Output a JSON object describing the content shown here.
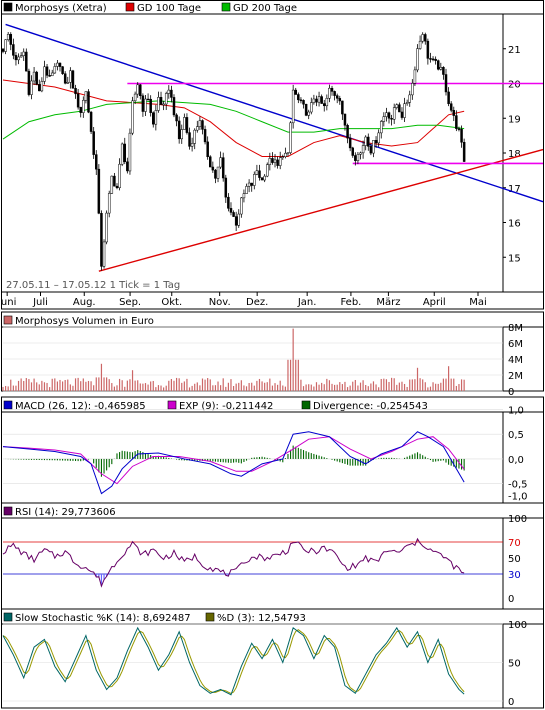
{
  "chart_data": [
    {
      "type": "candlestick",
      "panel": "price",
      "legend": [
        {
          "label": "Morphosys (Xetra)",
          "color": "#000000"
        },
        {
          "label": "GD 100 Tage",
          "color": "#dd0000"
        },
        {
          "label": "GD 200 Tage",
          "color": "#00bb00"
        }
      ],
      "date_range_label": "27.05.11 – 17.05.12   1 Tick = 1 Tag",
      "x_months": [
        "Juni",
        "Juli",
        "Aug.",
        "Sep.",
        "Okt.",
        "Nov.",
        "Dez.",
        "Jan.",
        "Feb.",
        "März",
        "April",
        "Mai"
      ],
      "ylim": [
        14.0,
        22.0
      ],
      "yticks": [
        15,
        16,
        17,
        18,
        19,
        20,
        21
      ],
      "close_path": [
        [
          0,
          21.0
        ],
        [
          2,
          21.4
        ],
        [
          5,
          20.6
        ],
        [
          8,
          20.9
        ],
        [
          10,
          19.8
        ],
        [
          12,
          20.3
        ],
        [
          14,
          19.7
        ],
        [
          16,
          20.5
        ],
        [
          18,
          20.1
        ],
        [
          20,
          20.4
        ],
        [
          22,
          20.6
        ],
        [
          24,
          19.9
        ],
        [
          26,
          20.3
        ],
        [
          28,
          19.6
        ],
        [
          30,
          19.2
        ],
        [
          32,
          19.8
        ],
        [
          34,
          18.6
        ],
        [
          36,
          17.5
        ],
        [
          38,
          14.8
        ],
        [
          40,
          16.2
        ],
        [
          42,
          17.3
        ],
        [
          44,
          17.0
        ],
        [
          46,
          18.2
        ],
        [
          48,
          17.5
        ],
        [
          50,
          19.4
        ],
        [
          52,
          20.0
        ],
        [
          54,
          19.3
        ],
        [
          56,
          19.6
        ],
        [
          58,
          18.8
        ],
        [
          60,
          19.6
        ],
        [
          62,
          19.3
        ],
        [
          64,
          19.9
        ],
        [
          66,
          19.2
        ],
        [
          68,
          18.4
        ],
        [
          70,
          19.0
        ],
        [
          72,
          18.2
        ],
        [
          74,
          18.6
        ],
        [
          76,
          19.0
        ],
        [
          78,
          18.2
        ],
        [
          80,
          17.7
        ],
        [
          82,
          17.3
        ],
        [
          84,
          17.8
        ],
        [
          86,
          16.7
        ],
        [
          88,
          16.3
        ],
        [
          90,
          16.0
        ],
        [
          92,
          16.6
        ],
        [
          94,
          17.0
        ],
        [
          96,
          17.1
        ],
        [
          98,
          17.5
        ],
        [
          100,
          17.2
        ],
        [
          102,
          17.7
        ],
        [
          104,
          17.8
        ],
        [
          106,
          17.6
        ],
        [
          108,
          18.0
        ],
        [
          110,
          17.9
        ],
        [
          112,
          19.8
        ],
        [
          114,
          19.5
        ],
        [
          116,
          19.3
        ],
        [
          118,
          19.1
        ],
        [
          120,
          19.6
        ],
        [
          122,
          19.5
        ],
        [
          124,
          19.3
        ],
        [
          126,
          19.8
        ],
        [
          128,
          19.7
        ],
        [
          130,
          19.6
        ],
        [
          132,
          18.7
        ],
        [
          134,
          18.2
        ],
        [
          136,
          17.9
        ],
        [
          138,
          18.0
        ],
        [
          140,
          18.5
        ],
        [
          142,
          18.1
        ],
        [
          144,
          18.4
        ],
        [
          146,
          18.9
        ],
        [
          148,
          19.2
        ],
        [
          150,
          19.0
        ],
        [
          152,
          19.4
        ],
        [
          154,
          19.1
        ],
        [
          156,
          19.5
        ],
        [
          158,
          20.0
        ],
        [
          160,
          21.0
        ],
        [
          162,
          21.5
        ],
        [
          164,
          20.8
        ],
        [
          166,
          20.6
        ],
        [
          168,
          20.5
        ],
        [
          170,
          20.2
        ],
        [
          172,
          19.5
        ],
        [
          174,
          19.0
        ],
        [
          176,
          18.6
        ],
        [
          178,
          17.8
        ]
      ],
      "ma100_path": [
        [
          0,
          20.1
        ],
        [
          20,
          19.9
        ],
        [
          40,
          19.5
        ],
        [
          60,
          19.4
        ],
        [
          70,
          19.3
        ],
        [
          80,
          18.9
        ],
        [
          90,
          18.3
        ],
        [
          100,
          17.9
        ],
        [
          110,
          17.9
        ],
        [
          120,
          18.3
        ],
        [
          130,
          18.5
        ],
        [
          140,
          18.3
        ],
        [
          150,
          18.2
        ],
        [
          160,
          18.3
        ],
        [
          166,
          18.7
        ],
        [
          172,
          19.1
        ],
        [
          178,
          19.2
        ]
      ],
      "ma200_path": [
        [
          0,
          18.4
        ],
        [
          10,
          18.9
        ],
        [
          20,
          19.1
        ],
        [
          30,
          19.2
        ],
        [
          40,
          19.4
        ],
        [
          60,
          19.5
        ],
        [
          80,
          19.4
        ],
        [
          90,
          19.2
        ],
        [
          100,
          18.9
        ],
        [
          110,
          18.6
        ],
        [
          120,
          18.6
        ],
        [
          130,
          18.7
        ],
        [
          140,
          18.7
        ],
        [
          150,
          18.7
        ],
        [
          160,
          18.8
        ],
        [
          168,
          18.8
        ],
        [
          178,
          18.7
        ]
      ],
      "trendlines": [
        {
          "name": "resistance-downtrend",
          "color": "#0000cc",
          "points": [
            [
              1,
              21.7
            ],
            [
              193,
              16.6
            ]
          ]
        },
        {
          "name": "support-uptrend",
          "color": "#dd0000",
          "points": [
            [
              37,
              14.6
            ],
            [
              193,
              18.1
            ]
          ]
        },
        {
          "name": "horizontal-resistance",
          "color": "#ee00ee",
          "points": [
            [
              48,
              20.0
            ],
            [
              193,
              20.0
            ]
          ]
        },
        {
          "name": "horizontal-support",
          "color": "#ee00ee",
          "points": [
            [
              135,
              17.7
            ],
            [
              193,
              17.7
            ]
          ]
        }
      ]
    },
    {
      "type": "bar",
      "panel": "volume",
      "legend": [
        {
          "label": "Morphosys Volumen in Euro",
          "color": "#cc6666"
        }
      ],
      "ylim": [
        0,
        8
      ],
      "yticks_labels": [
        "0",
        "2M",
        "4M",
        "6M",
        "8M"
      ],
      "yticks": [
        0,
        2,
        4,
        6,
        8
      ],
      "spikes": [
        [
          38,
          3.4
        ],
        [
          50,
          2.6
        ],
        [
          112,
          7.8
        ],
        [
          160,
          2.9
        ],
        [
          172,
          3.1
        ]
      ],
      "base_level": 1.1
    },
    {
      "type": "line",
      "panel": "macd",
      "legend": [
        {
          "label": "MACD (26, 12): -0,465985",
          "color": "#0000cc"
        },
        {
          "label": "EXP (9): -0,211442",
          "color": "#cc00cc"
        },
        {
          "label": "Divergence: -0,254543",
          "color": "#006600"
        }
      ],
      "ylim": [
        -0.75,
        0.95
      ],
      "yticks": [
        1.0,
        0.5,
        0.0,
        -0.5
      ],
      "ytick_labels": [
        "1,0",
        "0,5",
        "0,0",
        "-0,5"
      ],
      "extra_label": "-1,0",
      "macd_path": [
        [
          0,
          0.25
        ],
        [
          10,
          0.2
        ],
        [
          20,
          0.15
        ],
        [
          30,
          0.05
        ],
        [
          34,
          -0.1
        ],
        [
          38,
          -0.7
        ],
        [
          42,
          -0.55
        ],
        [
          46,
          -0.2
        ],
        [
          52,
          0.1
        ],
        [
          60,
          0.12
        ],
        [
          70,
          0.0
        ],
        [
          80,
          -0.1
        ],
        [
          88,
          -0.3
        ],
        [
          92,
          -0.35
        ],
        [
          100,
          -0.1
        ],
        [
          108,
          0.0
        ],
        [
          112,
          0.5
        ],
        [
          118,
          0.55
        ],
        [
          126,
          0.45
        ],
        [
          134,
          0.05
        ],
        [
          140,
          -0.1
        ],
        [
          146,
          0.1
        ],
        [
          154,
          0.25
        ],
        [
          160,
          0.55
        ],
        [
          164,
          0.45
        ],
        [
          170,
          0.25
        ],
        [
          178,
          -0.47
        ]
      ],
      "signal_path": [
        [
          0,
          0.25
        ],
        [
          10,
          0.22
        ],
        [
          20,
          0.18
        ],
        [
          30,
          0.1
        ],
        [
          38,
          -0.3
        ],
        [
          44,
          -0.5
        ],
        [
          50,
          -0.15
        ],
        [
          58,
          0.05
        ],
        [
          68,
          0.05
        ],
        [
          80,
          -0.05
        ],
        [
          90,
          -0.25
        ],
        [
          96,
          -0.25
        ],
        [
          104,
          -0.05
        ],
        [
          112,
          0.2
        ],
        [
          118,
          0.4
        ],
        [
          126,
          0.45
        ],
        [
          134,
          0.2
        ],
        [
          142,
          0.0
        ],
        [
          150,
          0.15
        ],
        [
          160,
          0.4
        ],
        [
          166,
          0.45
        ],
        [
          172,
          0.2
        ],
        [
          178,
          -0.21
        ]
      ]
    },
    {
      "type": "line",
      "panel": "rsi",
      "legend": [
        {
          "label": "RSI (14): 29,773606",
          "color": "#660066"
        }
      ],
      "ylim": [
        0,
        100
      ],
      "yticks": [
        0,
        30,
        50,
        70,
        100
      ],
      "levels": [
        {
          "value": 70,
          "color": "#dd0000"
        },
        {
          "value": 30,
          "color": "#0000cc"
        }
      ],
      "rsi_path": [
        [
          0,
          58
        ],
        [
          4,
          66
        ],
        [
          8,
          55
        ],
        [
          12,
          48
        ],
        [
          16,
          60
        ],
        [
          20,
          52
        ],
        [
          24,
          58
        ],
        [
          28,
          44
        ],
        [
          32,
          38
        ],
        [
          36,
          28
        ],
        [
          38,
          18
        ],
        [
          42,
          38
        ],
        [
          46,
          55
        ],
        [
          50,
          68
        ],
        [
          54,
          54
        ],
        [
          58,
          60
        ],
        [
          62,
          50
        ],
        [
          66,
          56
        ],
        [
          70,
          45
        ],
        [
          74,
          52
        ],
        [
          78,
          40
        ],
        [
          82,
          36
        ],
        [
          86,
          30
        ],
        [
          90,
          33
        ],
        [
          94,
          48
        ],
        [
          98,
          52
        ],
        [
          102,
          50
        ],
        [
          106,
          54
        ],
        [
          110,
          60
        ],
        [
          112,
          72
        ],
        [
          116,
          60
        ],
        [
          120,
          58
        ],
        [
          124,
          62
        ],
        [
          128,
          56
        ],
        [
          132,
          38
        ],
        [
          136,
          40
        ],
        [
          140,
          50
        ],
        [
          144,
          44
        ],
        [
          148,
          60
        ],
        [
          152,
          56
        ],
        [
          156,
          64
        ],
        [
          160,
          70
        ],
        [
          162,
          68
        ],
        [
          166,
          58
        ],
        [
          170,
          52
        ],
        [
          174,
          40
        ],
        [
          178,
          30
        ]
      ]
    },
    {
      "type": "line",
      "panel": "stochastic",
      "legend": [
        {
          "label": "Slow Stochastic %K (14): 8,692487",
          "color": "#006666"
        },
        {
          "label": "%D (3): 12,54793",
          "color": "#666600"
        }
      ],
      "ylim": [
        0,
        100
      ],
      "yticks": [
        0,
        50,
        100
      ],
      "k_path": [
        [
          0,
          85
        ],
        [
          4,
          60
        ],
        [
          8,
          30
        ],
        [
          12,
          70
        ],
        [
          16,
          80
        ],
        [
          20,
          45
        ],
        [
          24,
          25
        ],
        [
          28,
          55
        ],
        [
          32,
          85
        ],
        [
          36,
          40
        ],
        [
          40,
          15
        ],
        [
          44,
          30
        ],
        [
          48,
          65
        ],
        [
          52,
          95
        ],
        [
          56,
          70
        ],
        [
          60,
          40
        ],
        [
          64,
          60
        ],
        [
          68,
          90
        ],
        [
          72,
          50
        ],
        [
          76,
          20
        ],
        [
          80,
          10
        ],
        [
          84,
          15
        ],
        [
          88,
          8
        ],
        [
          92,
          45
        ],
        [
          96,
          75
        ],
        [
          100,
          55
        ],
        [
          104,
          80
        ],
        [
          108,
          50
        ],
        [
          112,
          95
        ],
        [
          116,
          85
        ],
        [
          120,
          55
        ],
        [
          124,
          85
        ],
        [
          128,
          70
        ],
        [
          132,
          20
        ],
        [
          136,
          10
        ],
        [
          140,
          35
        ],
        [
          144,
          60
        ],
        [
          148,
          75
        ],
        [
          152,
          95
        ],
        [
          156,
          70
        ],
        [
          160,
          90
        ],
        [
          164,
          50
        ],
        [
          168,
          80
        ],
        [
          172,
          35
        ],
        [
          176,
          15
        ],
        [
          178,
          9
        ]
      ]
    }
  ]
}
